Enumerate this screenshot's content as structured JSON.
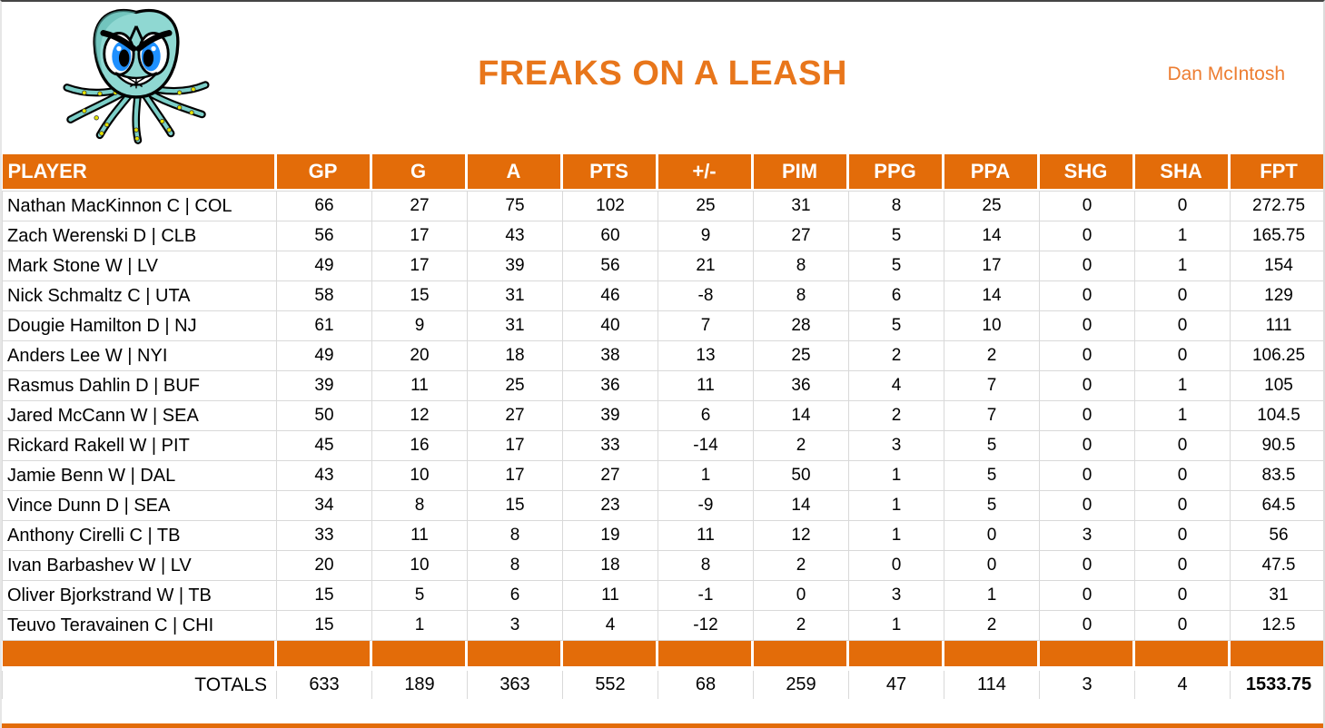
{
  "header": {
    "team_name": "FREAKS ON A LEASH",
    "manager": "Dan McIntosh",
    "logo": "angry-octopus-cartoon"
  },
  "colors": {
    "accent_orange": "#E36C09",
    "title_orange": "#E8761B",
    "manager_orange": "#ED7D31",
    "grid_line": "#D9D9D9"
  },
  "table": {
    "columns": [
      "PLAYER",
      "GP",
      "G",
      "A",
      "PTS",
      "+/-",
      "PIM",
      "PPG",
      "PPA",
      "SHG",
      "SHA",
      "FPT"
    ],
    "rows": [
      [
        "Nathan MacKinnon C | COL",
        "66",
        "27",
        "75",
        "102",
        "25",
        "31",
        "8",
        "25",
        "0",
        "0",
        "272.75"
      ],
      [
        "Zach Werenski D | CLB",
        "56",
        "17",
        "43",
        "60",
        "9",
        "27",
        "5",
        "14",
        "0",
        "1",
        "165.75"
      ],
      [
        "Mark Stone W | LV",
        "49",
        "17",
        "39",
        "56",
        "21",
        "8",
        "5",
        "17",
        "0",
        "1",
        "154"
      ],
      [
        "Nick Schmaltz C | UTA",
        "58",
        "15",
        "31",
        "46",
        "-8",
        "8",
        "6",
        "14",
        "0",
        "0",
        "129"
      ],
      [
        "Dougie Hamilton D | NJ",
        "61",
        "9",
        "31",
        "40",
        "7",
        "28",
        "5",
        "10",
        "0",
        "0",
        "111"
      ],
      [
        "Anders Lee W | NYI",
        "49",
        "20",
        "18",
        "38",
        "13",
        "25",
        "2",
        "2",
        "0",
        "0",
        "106.25"
      ],
      [
        "Rasmus Dahlin D | BUF",
        "39",
        "11",
        "25",
        "36",
        "11",
        "36",
        "4",
        "7",
        "0",
        "1",
        "105"
      ],
      [
        "Jared McCann W | SEA",
        "50",
        "12",
        "27",
        "39",
        "6",
        "14",
        "2",
        "7",
        "0",
        "1",
        "104.5"
      ],
      [
        "Rickard Rakell W | PIT",
        "45",
        "16",
        "17",
        "33",
        "-14",
        "2",
        "3",
        "5",
        "0",
        "0",
        "90.5"
      ],
      [
        "Jamie Benn W | DAL",
        "43",
        "10",
        "17",
        "27",
        "1",
        "50",
        "1",
        "5",
        "0",
        "0",
        "83.5"
      ],
      [
        "Vince Dunn D | SEA",
        "34",
        "8",
        "15",
        "23",
        "-9",
        "14",
        "1",
        "5",
        "0",
        "0",
        "64.5"
      ],
      [
        "Anthony Cirelli C | TB",
        "33",
        "11",
        "8",
        "19",
        "11",
        "12",
        "1",
        "0",
        "3",
        "0",
        "56"
      ],
      [
        "Ivan Barbashev W | LV",
        "20",
        "10",
        "8",
        "18",
        "8",
        "2",
        "0",
        "0",
        "0",
        "0",
        "47.5"
      ],
      [
        "Oliver Bjorkstrand W | TB",
        "15",
        "5",
        "6",
        "11",
        "-1",
        "0",
        "3",
        "1",
        "0",
        "0",
        "31"
      ],
      [
        "Teuvo Teravainen C | CHI",
        "15",
        "1",
        "3",
        "4",
        "-12",
        "2",
        "1",
        "2",
        "0",
        "0",
        "12.5"
      ]
    ],
    "totals_label": "TOTALS",
    "totals": [
      "633",
      "189",
      "363",
      "552",
      "68",
      "259",
      "47",
      "114",
      "3",
      "4",
      "1533.75"
    ]
  }
}
